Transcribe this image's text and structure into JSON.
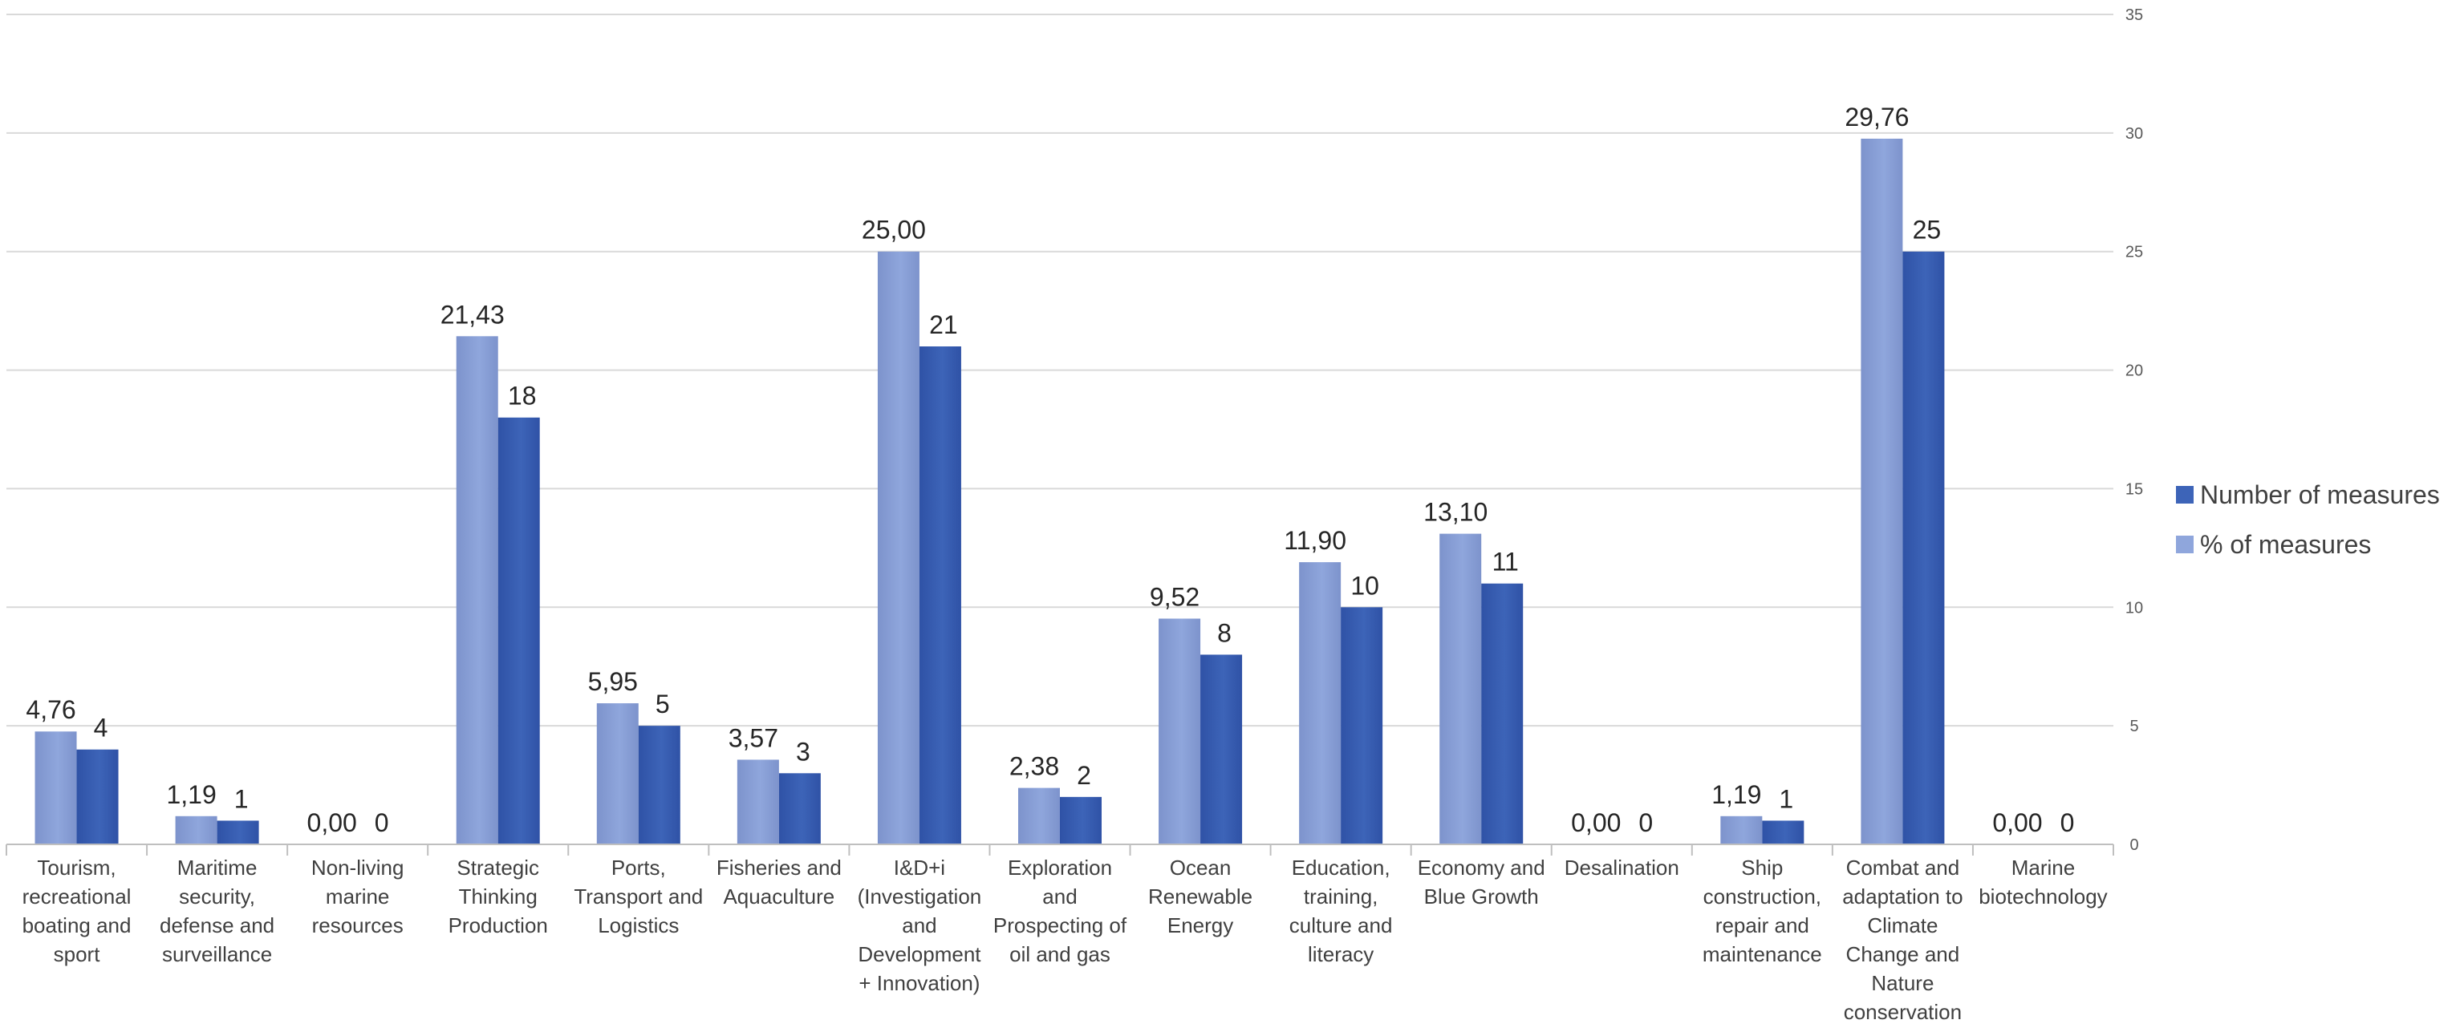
{
  "chart_data": {
    "type": "bar",
    "title": "",
    "xlabel": "",
    "ylabel": "",
    "ylim": [
      0,
      35
    ],
    "yticks": [
      "0",
      "5",
      "10",
      "15",
      "20",
      "25",
      "30",
      "35"
    ],
    "y_axis_side": "right",
    "grid": true,
    "legend_position": "right",
    "categories": [
      [
        "Tourism,",
        "recreational",
        "boating and",
        "sport"
      ],
      [
        "Maritime",
        "security,",
        "defense and",
        "surveillance"
      ],
      [
        "Non-living",
        "marine",
        "resources"
      ],
      [
        "Strategic",
        "Thinking",
        "Production"
      ],
      [
        "Ports,",
        "Transport and",
        "Logistics"
      ],
      [
        "Fisheries and",
        "Aquaculture"
      ],
      [
        "I&D+i",
        "(Investigation",
        "and",
        "Development",
        "+ Innovation)"
      ],
      [
        "Exploration",
        "and",
        "Prospecting of",
        "oil and gas"
      ],
      [
        "Ocean",
        "Renewable",
        "Energy"
      ],
      [
        "Education,",
        "training,",
        "culture and",
        "literacy"
      ],
      [
        "Economy and",
        "Blue Growth"
      ],
      [
        "Desalination"
      ],
      [
        "Ship",
        "construction,",
        "repair and",
        "maintenance"
      ],
      [
        "Combat and",
        "adaptation to",
        "Climate",
        "Change and",
        "Nature",
        "conservation"
      ],
      [
        "Marine",
        "biotechnology"
      ]
    ],
    "series": [
      {
        "name": "% of measures",
        "color": "#8fa6dc",
        "color_dark": "#7d93cc",
        "values": [
          4.76,
          1.19,
          0.0,
          21.43,
          5.95,
          3.57,
          25.0,
          2.38,
          9.52,
          11.9,
          13.1,
          0.0,
          1.19,
          29.76,
          0.0
        ],
        "labels": [
          "4,76",
          "1,19",
          "0,00",
          "21,43",
          "5,95",
          "3,57",
          "25,00",
          "2,38",
          "9,52",
          "11,90",
          "13,10",
          "0,00",
          "1,19",
          "29,76",
          "0,00"
        ]
      },
      {
        "name": "Number of measures",
        "color": "#3d64b8",
        "color_dark": "#2f52a6",
        "values": [
          4,
          1,
          0,
          18,
          5,
          3,
          21,
          2,
          8,
          10,
          11,
          0,
          1,
          25,
          0
        ],
        "labels": [
          "4",
          "1",
          "0",
          "18",
          "5",
          "3",
          "21",
          "2",
          "8",
          "10",
          "11",
          "0",
          "1",
          "25",
          "0"
        ]
      }
    ],
    "legend_order": [
      "Number of measures",
      "% of measures"
    ]
  }
}
